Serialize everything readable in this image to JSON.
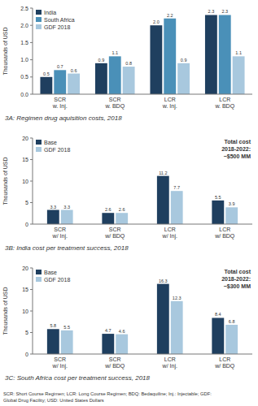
{
  "chart_data": [
    {
      "type": "bar",
      "title": "3A: Regimen drug aquisition costs, 2018",
      "categories": [
        "SCR\nw. Inj.",
        "SCR\nw. BDQ",
        "LCR\nw. Inj.",
        "LCR\nw. BDQ"
      ],
      "series": [
        {
          "name": "India",
          "color": "#1f3f5f",
          "values": [
            0.5,
            0.9,
            2.0,
            2.3
          ],
          "value_labels": [
            "0.5",
            "0.9",
            "2.0",
            "2.3"
          ]
        },
        {
          "name": "South Africa",
          "color": "#4a90b8",
          "values": [
            0.7,
            1.1,
            2.2,
            2.3
          ]
        },
        {
          "name": "GDF 2018",
          "color": "#a8c8de",
          "values": [
            0.6,
            0.8,
            0.9,
            1.1
          ]
        }
      ],
      "ylabel": "Thousands of USD",
      "ylim": [
        0,
        2.5
      ],
      "yticks": [
        {
          "value": 0,
          "label": "0.0"
        },
        0.5,
        {
          "value": 1,
          "label": "1.0"
        },
        1.5,
        {
          "value": 2,
          "label": "2.0"
        },
        2.5
      ],
      "legend": "top-left",
      "data_labels": true,
      "grid": false
    },
    {
      "type": "bar",
      "title": "3B: India cost per treatment success, 2018",
      "categories": [
        "SCR\nw/ Inj.",
        "SCR\nw/ BDQ",
        "LCR\nw/ Inj.",
        "LCR\nw/ BDQ"
      ],
      "series": [
        {
          "name": "Base",
          "color": "#1f3f5f",
          "values": [
            3.3,
            2.6,
            11.2,
            5.5
          ]
        },
        {
          "name": "GDF 2018",
          "color": "#a8c8de",
          "values": [
            3.3,
            2.6,
            7.7,
            3.9
          ]
        }
      ],
      "ylabel": "Thousands of USD",
      "ylim": [
        0,
        20
      ],
      "yticks": [
        0,
        5,
        10,
        15,
        20
      ],
      "annotation": "Total cost\n2018-2022:\n~$500 MM",
      "legend": "top-left",
      "data_labels": true,
      "grid": false
    },
    {
      "type": "bar",
      "title": "3C: South Africa cost per treatment success, 2018",
      "categories": [
        "SCR\nw/ Inj.",
        "SCR\nw/ BDQ",
        "LCR\nw/ Inj.",
        "LCR\nw/ BDQ"
      ],
      "series": [
        {
          "name": "Base",
          "color": "#1f3f5f",
          "values": [
            5.8,
            4.7,
            16.3,
            8.4
          ]
        },
        {
          "name": "GDF 2018",
          "color": "#a8c8de",
          "values": [
            5.5,
            4.6,
            12.3,
            6.8
          ]
        }
      ],
      "ylabel": "Thousands of USD",
      "ylim": [
        0,
        20
      ],
      "yticks": [
        0,
        5,
        10,
        15,
        20
      ],
      "annotation": "Total cost\n2018-2022:\n~$300 MM",
      "legend": "top-left",
      "data_labels": true,
      "grid": false
    }
  ],
  "footnote": "SCR: Short Course Regimen; LCR: Long Course Regimen; BDQ: Bedaquiline; Inj.: Injectable; GDF:\nGlobal Drug Facility; USD: United States Dollars"
}
